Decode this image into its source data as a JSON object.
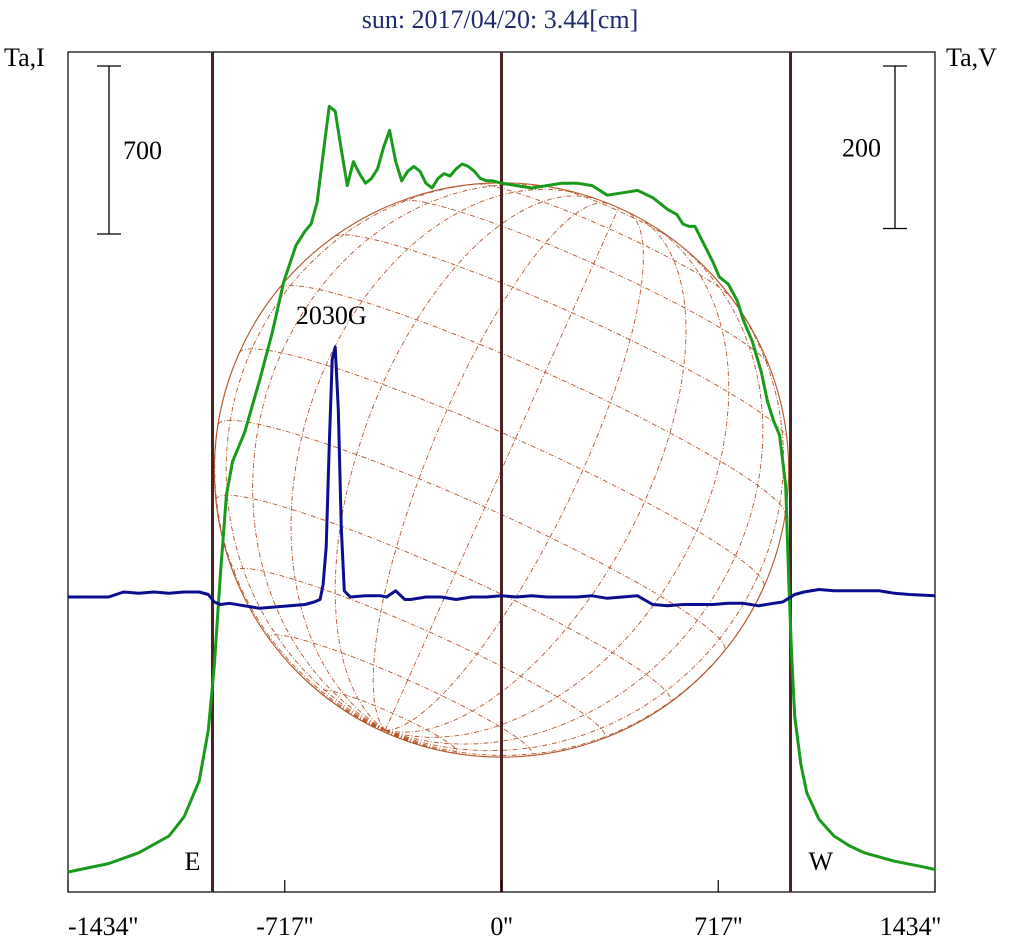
{
  "chart_data": {
    "type": "line",
    "title": "sun: 2017/04/20: 3.44[cm]",
    "title_color": "#1f2a6e",
    "ylabel_left": "Ta,I",
    "ylabel_right": "Ta,V",
    "xlim": [
      -1434,
      1434
    ],
    "x_ticks": [
      {
        "value": -1434,
        "label": "-1434''"
      },
      {
        "value": -717,
        "label": "-717''"
      },
      {
        "value": 0,
        "label": "0''"
      },
      {
        "value": 717,
        "label": "717''"
      },
      {
        "value": 1434,
        "label": "1434''"
      }
    ],
    "scale_bars": [
      {
        "axis": "left",
        "label": "700",
        "length": 700
      },
      {
        "axis": "right",
        "label": "200",
        "length": 200
      }
    ],
    "vertical_lines": [
      {
        "x": -956,
        "label": "E"
      },
      {
        "x": 0,
        "label": ""
      },
      {
        "x": 956,
        "label": "W"
      }
    ],
    "solar_disk": {
      "radius_arcsec": 950,
      "grid": true,
      "color": "#b5562b"
    },
    "annotations": [
      {
        "text": "2030G",
        "x": -550,
        "series": "V"
      }
    ],
    "colors": {
      "I": "#1a9a1a",
      "V": "#0b0f8f",
      "frame": "#000000",
      "markers": "#4a2222"
    },
    "series": [
      {
        "key": "I",
        "axis": "left",
        "color": "#1a9a1a",
        "x": [
          -1434,
          -1300,
          -1200,
          -1100,
          -1050,
          -1000,
          -970,
          -950,
          -930,
          -910,
          -890,
          -850,
          -800,
          -760,
          -720,
          -680,
          -650,
          -630,
          -610,
          -590,
          -570,
          -550,
          -530,
          -510,
          -490,
          -470,
          -450,
          -430,
          -410,
          -390,
          -370,
          -350,
          -330,
          -310,
          -290,
          -270,
          -250,
          -230,
          -210,
          -190,
          -170,
          -150,
          -130,
          -110,
          -90,
          -70,
          -50,
          -30,
          0,
          50,
          100,
          150,
          200,
          250,
          300,
          350,
          400,
          450,
          500,
          550,
          580,
          600,
          620,
          640,
          660,
          680,
          700,
          720,
          750,
          780,
          800,
          830,
          860,
          880,
          900,
          920,
          940,
          950,
          960,
          970,
          990,
          1010,
          1050,
          1100,
          1150,
          1200,
          1300,
          1400,
          1434
        ],
        "values": [
          0,
          35,
          80,
          150,
          230,
          380,
          590,
          860,
          1240,
          1570,
          1710,
          1830,
          2050,
          2240,
          2460,
          2610,
          2670,
          2700,
          2790,
          2990,
          3190,
          3170,
          3010,
          2860,
          2960,
          2910,
          2870,
          2890,
          2930,
          3020,
          3090,
          2960,
          2880,
          2920,
          2940,
          2920,
          2870,
          2850,
          2890,
          2910,
          2900,
          2930,
          2950,
          2940,
          2920,
          2890,
          2880,
          2880,
          2870,
          2860,
          2850,
          2860,
          2870,
          2870,
          2860,
          2820,
          2830,
          2840,
          2810,
          2760,
          2740,
          2700,
          2690,
          2690,
          2640,
          2590,
          2540,
          2480,
          2450,
          2380,
          2300,
          2210,
          2080,
          1960,
          1880,
          1820,
          1610,
          1220,
          900,
          650,
          450,
          330,
          220,
          150,
          110,
          80,
          45,
          20,
          10
        ]
      },
      {
        "key": "V",
        "axis": "right",
        "color": "#0b0f8f",
        "x": [
          -1434,
          -1300,
          -1250,
          -1200,
          -1150,
          -1100,
          -1050,
          -1000,
          -970,
          -950,
          -930,
          -900,
          -850,
          -800,
          -750,
          -700,
          -650,
          -620,
          -600,
          -590,
          -580,
          -570,
          -560,
          -550,
          -540,
          -530,
          -520,
          -500,
          -450,
          -400,
          -380,
          -350,
          -320,
          -300,
          -250,
          -200,
          -150,
          -100,
          -50,
          0,
          50,
          100,
          150,
          200,
          250,
          300,
          350,
          400,
          450,
          500,
          550,
          600,
          650,
          700,
          750,
          800,
          850,
          900,
          930,
          950,
          970,
          1000,
          1050,
          1100,
          1150,
          1200,
          1250,
          1300,
          1350,
          1434
        ],
        "values": [
          0,
          0,
          4,
          3,
          4,
          3,
          4,
          4,
          2,
          -4,
          -6,
          -5,
          -7,
          -9,
          -8,
          -7,
          -6,
          -4,
          -2,
          10,
          40,
          120,
          190,
          200,
          150,
          55,
          5,
          0,
          1,
          1,
          0,
          5,
          -2,
          -2,
          0,
          0,
          -2,
          0,
          0,
          1,
          0,
          1,
          0,
          0,
          0,
          1,
          -1,
          0,
          1,
          -6,
          -7,
          -6,
          -6,
          -6,
          -5,
          -5,
          -7,
          -5,
          -4,
          -1,
          2,
          4,
          6,
          5,
          5,
          5,
          5,
          3,
          2,
          1
        ]
      }
    ]
  }
}
